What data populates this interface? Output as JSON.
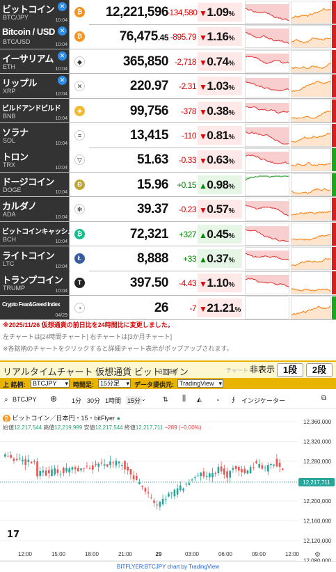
{
  "coins": [
    {
      "name": "ビットコイン",
      "symbol": "BTC/JPY",
      "time": "10:04",
      "x_badge": true,
      "icon": "bitcoin-icon",
      "icon_color": "#f7931a",
      "icon_glyph": "₿",
      "price": "12,221,596",
      "price_dec": "",
      "change": "-134,580",
      "pct": "1.09",
      "dir": "dn",
      "side": "#d62020",
      "small": false,
      "mini1_trend": "dn",
      "mini2_trend": "up"
    },
    {
      "name": "Bitcoin / USD",
      "symbol": "BTC/USD",
      "time": "10:04",
      "x_badge": true,
      "icon": "bitcoin-icon",
      "icon_color": "#f7931a",
      "icon_glyph": "₿",
      "price": "76,475",
      "price_dec": ".45",
      "change": "-895.79",
      "pct": "1.16",
      "dir": "dn",
      "side": "#d62020",
      "small": false,
      "mini1_trend": "dn",
      "mini2_trend": "up"
    },
    {
      "name": "イーサリアム",
      "symbol": "ETH",
      "time": "10:04",
      "x_badge": true,
      "icon": "ethereum-icon",
      "icon_color": "#ffffff",
      "icon_glyph": "◆",
      "price": "365,850",
      "price_dec": "",
      "change": "-2,718",
      "pct": "0.74",
      "dir": "dn",
      "side": "#d62020",
      "small": false,
      "mini1_trend": "dn",
      "mini2_trend": "up"
    },
    {
      "name": "リップル",
      "symbol": "XRP",
      "time": "10:04",
      "x_badge": true,
      "icon": "xrp-icon",
      "icon_color": "#ffffff",
      "icon_glyph": "✕",
      "price": "220.97",
      "price_dec": "",
      "change": "-2.31",
      "pct": "1.03",
      "dir": "dn",
      "side": "#d62020",
      "small": false,
      "mini1_trend": "dn",
      "mini2_trend": "up"
    },
    {
      "name": "ビルドアンドビルド",
      "symbol": "BNB",
      "time": "10:04",
      "x_badge": false,
      "icon": "bnb-icon",
      "icon_color": "#f3ba2f",
      "icon_glyph": "◈",
      "price": "99,756",
      "price_dec": "",
      "change": "-378",
      "pct": "0.38",
      "dir": "dn",
      "side": "#d62020",
      "small": true,
      "mini1_trend": "dn",
      "mini2_trend": "up"
    },
    {
      "name": "ソラナ",
      "symbol": "SOL",
      "time": "10:04",
      "x_badge": false,
      "icon": "solana-icon",
      "icon_color": "#ffffff",
      "icon_glyph": "≡",
      "price": "13,415",
      "price_dec": "",
      "change": "-110",
      "pct": "0.81",
      "dir": "dn",
      "side": "#d62020",
      "small": false,
      "mini1_trend": "dn",
      "mini2_trend": "up"
    },
    {
      "name": "トロン",
      "symbol": "TRX",
      "time": "10:04",
      "x_badge": false,
      "icon": "tron-icon",
      "icon_color": "#ffffff",
      "icon_glyph": "▽",
      "price": "51.63",
      "price_dec": "",
      "change": "-0.33",
      "pct": "0.63",
      "dir": "dn",
      "side": "#1aa81a",
      "small": false,
      "mini1_trend": "dn",
      "mini2_trend": "up"
    },
    {
      "name": "ドージコイン",
      "symbol": "DOGE",
      "time": "10:04",
      "x_badge": false,
      "icon": "dogecoin-icon",
      "icon_color": "#c2a633",
      "icon_glyph": "Ð",
      "price": "15.96",
      "price_dec": "",
      "change": "+0.15",
      "pct": "0.98",
      "dir": "up",
      "side": "#1aa81a",
      "small": false,
      "mini1_trend": "up",
      "mini2_trend": "up"
    },
    {
      "name": "カルダノ",
      "symbol": "ADA",
      "time": "10:04",
      "x_badge": false,
      "icon": "cardano-icon",
      "icon_color": "#ffffff",
      "icon_glyph": "✻",
      "price": "39.37",
      "price_dec": "",
      "change": "-0.23",
      "pct": "0.57",
      "dir": "dn",
      "side": "#d62020",
      "small": false,
      "mini1_trend": "dn",
      "mini2_trend": "up"
    },
    {
      "name": "ビットコインキャッシュ",
      "symbol": "BCH",
      "time": "10:04",
      "x_badge": false,
      "icon": "bitcoin-cash-icon",
      "icon_color": "#0ac18e",
      "icon_glyph": "₿",
      "price": "72,321",
      "price_dec": "",
      "change": "+327",
      "pct": "0.45",
      "dir": "up",
      "side": "#d62020",
      "small": true,
      "mini1_trend": "dn",
      "mini2_trend": "up"
    },
    {
      "name": "ライトコイン",
      "symbol": "LTC",
      "time": "10:04",
      "x_badge": false,
      "icon": "litecoin-icon",
      "icon_color": "#345d9d",
      "icon_glyph": "Ł",
      "price": "8,888",
      "price_dec": "",
      "change": "+33",
      "pct": "0.37",
      "dir": "up",
      "side": "#d62020",
      "small": false,
      "mini1_trend": "dn",
      "mini2_trend": "up"
    },
    {
      "name": "トランプコイン",
      "symbol": "TRUMP",
      "time": "10:04",
      "x_badge": false,
      "icon": "trump-icon",
      "icon_color": "#222222",
      "icon_glyph": "T",
      "price": "397.50",
      "price_dec": "",
      "change": "-4.43",
      "pct": "1.10",
      "dir": "dn",
      "side": "#d62020",
      "small": false,
      "mini1_trend": "dn",
      "mini2_trend": "up"
    },
    {
      "name": "Crypto Fear&Greed Index",
      "symbol": "",
      "time": "04/29",
      "x_badge": false,
      "icon": "fear-greed-icon",
      "icon_color": "#ffffff",
      "icon_glyph": "◔",
      "price": "26",
      "price_dec": "",
      "change": "-7",
      "pct": "21.21",
      "dir": "dn",
      "side": "#1aa81a",
      "small": true,
      "tiny": true,
      "mini1_trend": "none",
      "mini2_trend": "up"
    }
  ],
  "notes": {
    "line1": "※2025/11/26 仮想通貨の前日比を24時間比に変更しました。",
    "line2": "左チャートは[24時間チャート] 右チャートは[3か月チャート]",
    "line3": "※各銘柄のチャートをクリックすると詳細チャート表示がポップアップされます。"
  },
  "realtime": {
    "title": "リアルタイムチャート 仮想通貨 ビットコイン",
    "auto": "自動更新",
    "chart_label": "チャート：",
    "hide": "非表示",
    "one": "1段",
    "two": "2段"
  },
  "toolbar1": {
    "symbol_label": "上 銘柄:",
    "symbol_value": "BTCJPY",
    "time_label": "時間足:",
    "time_value": "15分足",
    "provider_label": "データ提供元:",
    "provider_value": "TradingView"
  },
  "tv": {
    "symbol": "BTCJPY",
    "intervals": [
      "1分",
      "30分",
      "1時間",
      "15分"
    ],
    "indicator": "インジケーター",
    "legend": "ビットコイン／日本円・15・bitFlyer",
    "open_label": "始値",
    "open": "12,217,544",
    "high_label": "高値",
    "high": "12,219,999",
    "low_label": "安値",
    "low": "12,217,544",
    "close_label": "終値",
    "close": "12,217,711",
    "change": "−289 (−0.00%)",
    "last_price": "12,217,711",
    "y_ticks": [
      "12,360,000",
      "12,320,000",
      "12,280,000",
      "12,240,000",
      "12,200,000",
      "12,160,000",
      "12,120,000",
      "12,080,000"
    ],
    "x_ticks": [
      "12:00",
      "15:00",
      "18:00",
      "21:00",
      "29",
      "03:00",
      "06:00",
      "09:00",
      "12:00"
    ]
  },
  "footer": "BITFLYER:BTCJPY chart by TradingView"
}
